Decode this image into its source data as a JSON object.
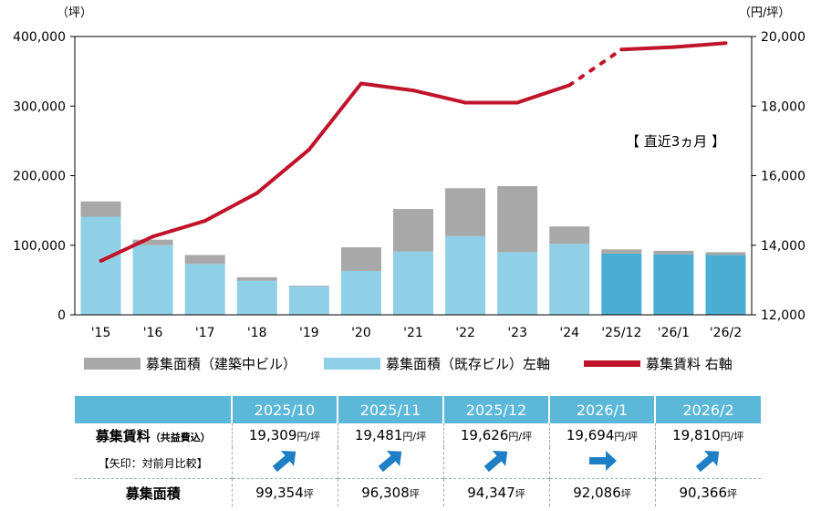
{
  "chart_data": {
    "type": "bar+line",
    "categories": [
      "'15",
      "'16",
      "'17",
      "'18",
      "'19",
      "'20",
      "'21",
      "'22",
      "'23",
      "'24",
      "'25/12",
      "'26/1",
      "'26/2"
    ],
    "series": [
      {
        "name": "募集面積（既存ビル）左軸",
        "axis": "left",
        "type": "bar",
        "values": [
          141000,
          100000,
          73000,
          49000,
          41000,
          63000,
          91000,
          113000,
          90000,
          102000,
          88000,
          87000,
          86000
        ]
      },
      {
        "name": "募集面積（建築中ビル）",
        "axis": "left",
        "type": "bar-stack",
        "values": [
          22000,
          8000,
          13000,
          5000,
          1000,
          34000,
          61000,
          69000,
          95000,
          25000,
          6000,
          5000,
          4000
        ]
      },
      {
        "name": "募集賃料 右軸",
        "axis": "right",
        "type": "line",
        "values": [
          13550,
          14250,
          14700,
          15500,
          16750,
          18650,
          18450,
          18100,
          18100,
          18600,
          19626,
          19694,
          19810
        ]
      }
    ],
    "left_axis": {
      "unit": "（坪）",
      "ticks": [
        "400,000",
        "300,000",
        "200,000",
        "100,000",
        "0"
      ],
      "range": [
        0,
        400000
      ]
    },
    "right_axis": {
      "unit": "（円/坪）",
      "ticks": [
        "20,000",
        "18,000",
        "16,000",
        "14,000",
        "12,000"
      ],
      "range": [
        12000,
        20000
      ]
    },
    "annotation": "【 直近3ヵ月 】",
    "legend": [
      "募集面積（建築中ビル）",
      "募集面積（既存ビル）左軸",
      "募集賃料 右軸"
    ],
    "colors": {
      "existing": "#8fd0e6",
      "existing_recent": "#4aaed4",
      "construction": "#a8a8a8",
      "line": "#c0142a"
    }
  },
  "table": {
    "columns": [
      "2025/10",
      "2025/11",
      "2025/12",
      "2026/1",
      "2026/2"
    ],
    "rate_label": "募集賃料",
    "rate_label_sub": "（共益費込）",
    "arrow_label": "【矢印：対前月比較】",
    "area_label": "募集面積",
    "rates": [
      "19,309",
      "19,481",
      "19,626",
      "19,694",
      "19,810"
    ],
    "rate_unit": "円/坪",
    "arrows": [
      "up",
      "up",
      "up",
      "flat",
      "up"
    ],
    "areas": [
      "99,354",
      "96,308",
      "94,347",
      "92,086",
      "90,366"
    ],
    "area_unit": "坪"
  }
}
